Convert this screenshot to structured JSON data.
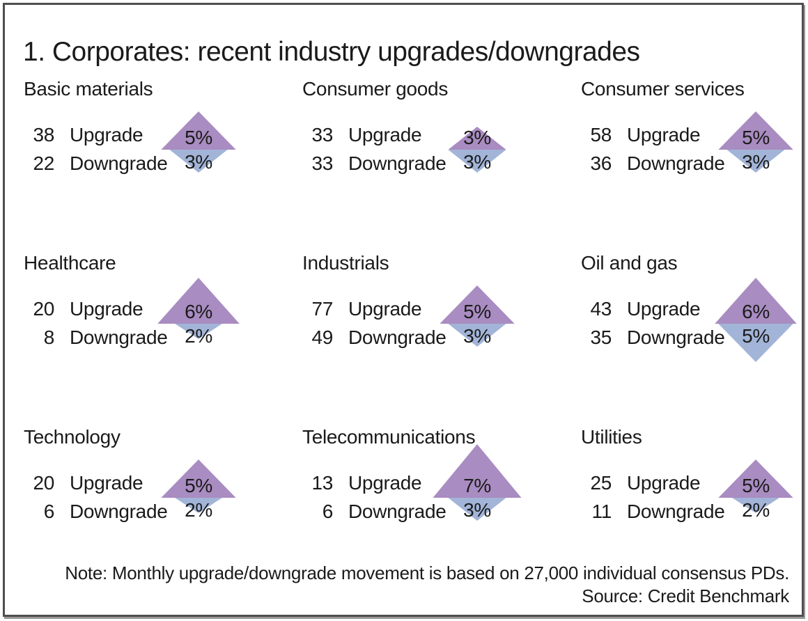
{
  "figure": {
    "title": "1. Corporates: recent industry upgrades/downgrades",
    "note": "Note: Monthly upgrade/downgrade movement is based on 27,000 individual consensus PDs.",
    "source": "Source: Credit Benchmark"
  },
  "colors": {
    "upgrade_triangle": "#a98cc1",
    "downgrade_triangle": "#a2b4d7",
    "text": "#1a1a1a",
    "border": "#4e4e4e"
  },
  "panels": [
    {
      "title": "Basic materials",
      "upgrade": {
        "count": "38",
        "label": "Upgrade",
        "percent": "5%",
        "percent_value": 5
      },
      "downgrade": {
        "count": "22",
        "label": "Downgrade",
        "percent": "3%",
        "percent_value": 3
      }
    },
    {
      "title": "Consumer goods",
      "upgrade": {
        "count": "33",
        "label": "Upgrade",
        "percent": "3%",
        "percent_value": 3
      },
      "downgrade": {
        "count": "33",
        "label": "Downgrade",
        "percent": "3%",
        "percent_value": 3
      }
    },
    {
      "title": "Consumer services",
      "upgrade": {
        "count": "58",
        "label": "Upgrade",
        "percent": "5%",
        "percent_value": 5
      },
      "downgrade": {
        "count": "36",
        "label": "Downgrade",
        "percent": "3%",
        "percent_value": 3
      }
    },
    {
      "title": "Healthcare",
      "upgrade": {
        "count": "20",
        "label": "Upgrade",
        "percent": "6%",
        "percent_value": 6
      },
      "downgrade": {
        "count": "8",
        "label": "Downgrade",
        "percent": "2%",
        "percent_value": 2
      }
    },
    {
      "title": "Industrials",
      "upgrade": {
        "count": "77",
        "label": "Upgrade",
        "percent": "5%",
        "percent_value": 5
      },
      "downgrade": {
        "count": "49",
        "label": "Downgrade",
        "percent": "3%",
        "percent_value": 3
      }
    },
    {
      "title": "Oil and gas",
      "upgrade": {
        "count": "43",
        "label": "Upgrade",
        "percent": "6%",
        "percent_value": 6
      },
      "downgrade": {
        "count": "35",
        "label": "Downgrade",
        "percent": "5%",
        "percent_value": 5
      }
    },
    {
      "title": "Technology",
      "upgrade": {
        "count": "20",
        "label": "Upgrade",
        "percent": "5%",
        "percent_value": 5
      },
      "downgrade": {
        "count": "6",
        "label": "Downgrade",
        "percent": "2%",
        "percent_value": 2
      }
    },
    {
      "title": "Telecommunications",
      "upgrade": {
        "count": "13",
        "label": "Upgrade",
        "percent": "7%",
        "percent_value": 7
      },
      "downgrade": {
        "count": "6",
        "label": "Downgrade",
        "percent": "3%",
        "percent_value": 3
      }
    },
    {
      "title": "Utilities",
      "upgrade": {
        "count": "25",
        "label": "Upgrade",
        "percent": "5%",
        "percent_value": 5
      },
      "downgrade": {
        "count": "11",
        "label": "Downgrade",
        "percent": "2%",
        "percent_value": 2
      }
    }
  ],
  "chart_data": {
    "type": "table",
    "title": "1. Corporates: recent industry upgrades/downgrades",
    "categories": [
      "Basic materials",
      "Consumer goods",
      "Consumer services",
      "Healthcare",
      "Industrials",
      "Oil and gas",
      "Technology",
      "Telecommunications",
      "Utilities"
    ],
    "series": [
      {
        "name": "Upgrade count",
        "values": [
          38,
          33,
          58,
          20,
          77,
          43,
          20,
          13,
          25
        ]
      },
      {
        "name": "Downgrade count",
        "values": [
          22,
          33,
          36,
          8,
          49,
          35,
          6,
          6,
          11
        ]
      },
      {
        "name": "Upgrade percent",
        "values": [
          5,
          3,
          5,
          6,
          5,
          6,
          5,
          7,
          5
        ]
      },
      {
        "name": "Downgrade percent",
        "values": [
          3,
          3,
          3,
          2,
          3,
          5,
          2,
          3,
          2
        ]
      }
    ],
    "glyph": "diamond of two triangles: purple up-triangle height scales with upgrade %, blue down-triangle height scales with downgrade %",
    "legend_position": "none",
    "note": "Note: Monthly upgrade/downgrade movement is based on 27,000 individual consensus PDs.",
    "source": "Source: Credit Benchmark"
  }
}
